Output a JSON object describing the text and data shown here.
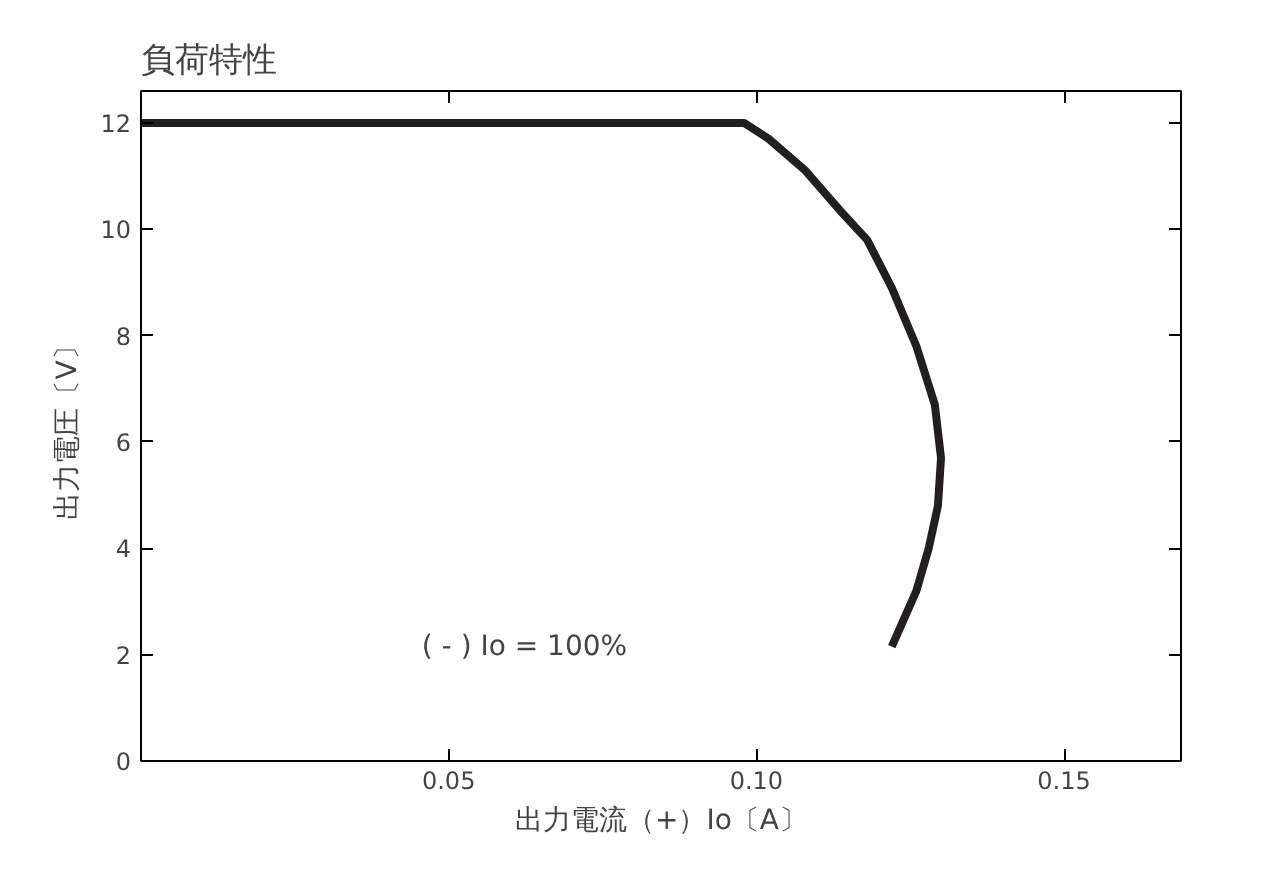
{
  "chart_data": {
    "type": "line",
    "title": "負荷特性",
    "xlabel": "出力電流（+）Io〔A〕",
    "ylabel": "出力電圧〔V〕",
    "x": [
      0,
      0.098,
      0.102,
      0.108,
      0.114,
      0.118,
      0.122,
      0.126,
      0.129,
      0.13,
      0.1295,
      0.128,
      0.126,
      0.122
    ],
    "series": [
      {
        "color": "#231f20",
        "values": [
          12,
          12,
          11.7,
          11.1,
          10.3,
          9.8,
          8.9,
          7.8,
          6.7,
          5.7,
          4.8,
          4.0,
          3.2,
          2.15
        ]
      }
    ],
    "xlim": [
      0,
      0.169
    ],
    "ylim": [
      0,
      12.6
    ],
    "xticks": [
      0.05,
      {
        "value": 0.1,
        "label": "0.10"
      },
      0.15
    ],
    "yticks": [
      0,
      2,
      4,
      6,
      8,
      10,
      12
    ],
    "grid": false,
    "marker": "none",
    "line_style": "solid",
    "annotations": [
      "( - ) Io = 100%"
    ]
  }
}
